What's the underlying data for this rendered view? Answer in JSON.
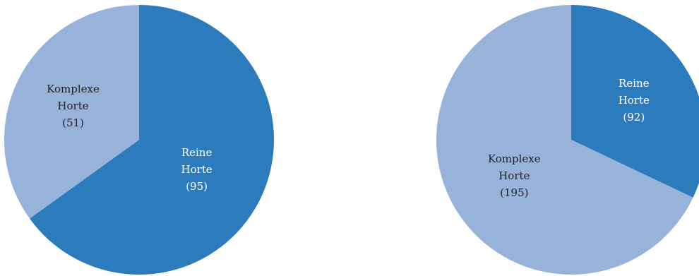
{
  "colors": {
    "dark_blue": "#2b7bbd",
    "light_blue": "#97b3da",
    "label_on_dark": "#ffffff",
    "label_on_light": "#222222",
    "background": "#ffffff"
  },
  "chart_data": [
    {
      "type": "pie",
      "title": "",
      "slices": [
        {
          "label_lines": [
            "Reine",
            "Horte"
          ],
          "value": 95,
          "value_text": "(95)",
          "color": "#2b7bbd",
          "label_color": "#ffffff"
        },
        {
          "label_lines": [
            "Komplexe",
            "Horte"
          ],
          "value": 51,
          "value_text": "(51)",
          "color": "#97b3da",
          "label_color": "#222222"
        }
      ]
    },
    {
      "type": "pie",
      "title": "",
      "slices": [
        {
          "label_lines": [
            "Reine",
            "Horte"
          ],
          "value": 92,
          "value_text": "(92)",
          "color": "#2b7bbd",
          "label_color": "#ffffff"
        },
        {
          "label_lines": [
            "Komplexe",
            "Horte"
          ],
          "value": 195,
          "value_text": "(195)",
          "color": "#97b3da",
          "label_color": "#222222"
        }
      ]
    }
  ]
}
